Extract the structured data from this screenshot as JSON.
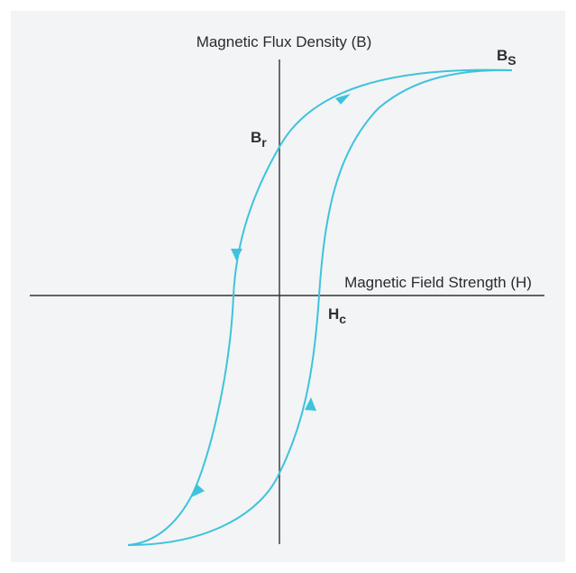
{
  "diagram": {
    "y_axis_label": "Magnetic Flux Density (B)",
    "x_axis_label": "Magnetic Field Strength (H)",
    "saturation": {
      "base": "B",
      "sub": "S"
    },
    "remanence": {
      "base": "B",
      "sub": "r"
    },
    "coercivity": {
      "base": "H",
      "sub": "c"
    },
    "colors": {
      "background": "#f3f4f6",
      "curve": "#3ec3dc",
      "axis": "#333333",
      "text": "#2b2b2b"
    }
  }
}
